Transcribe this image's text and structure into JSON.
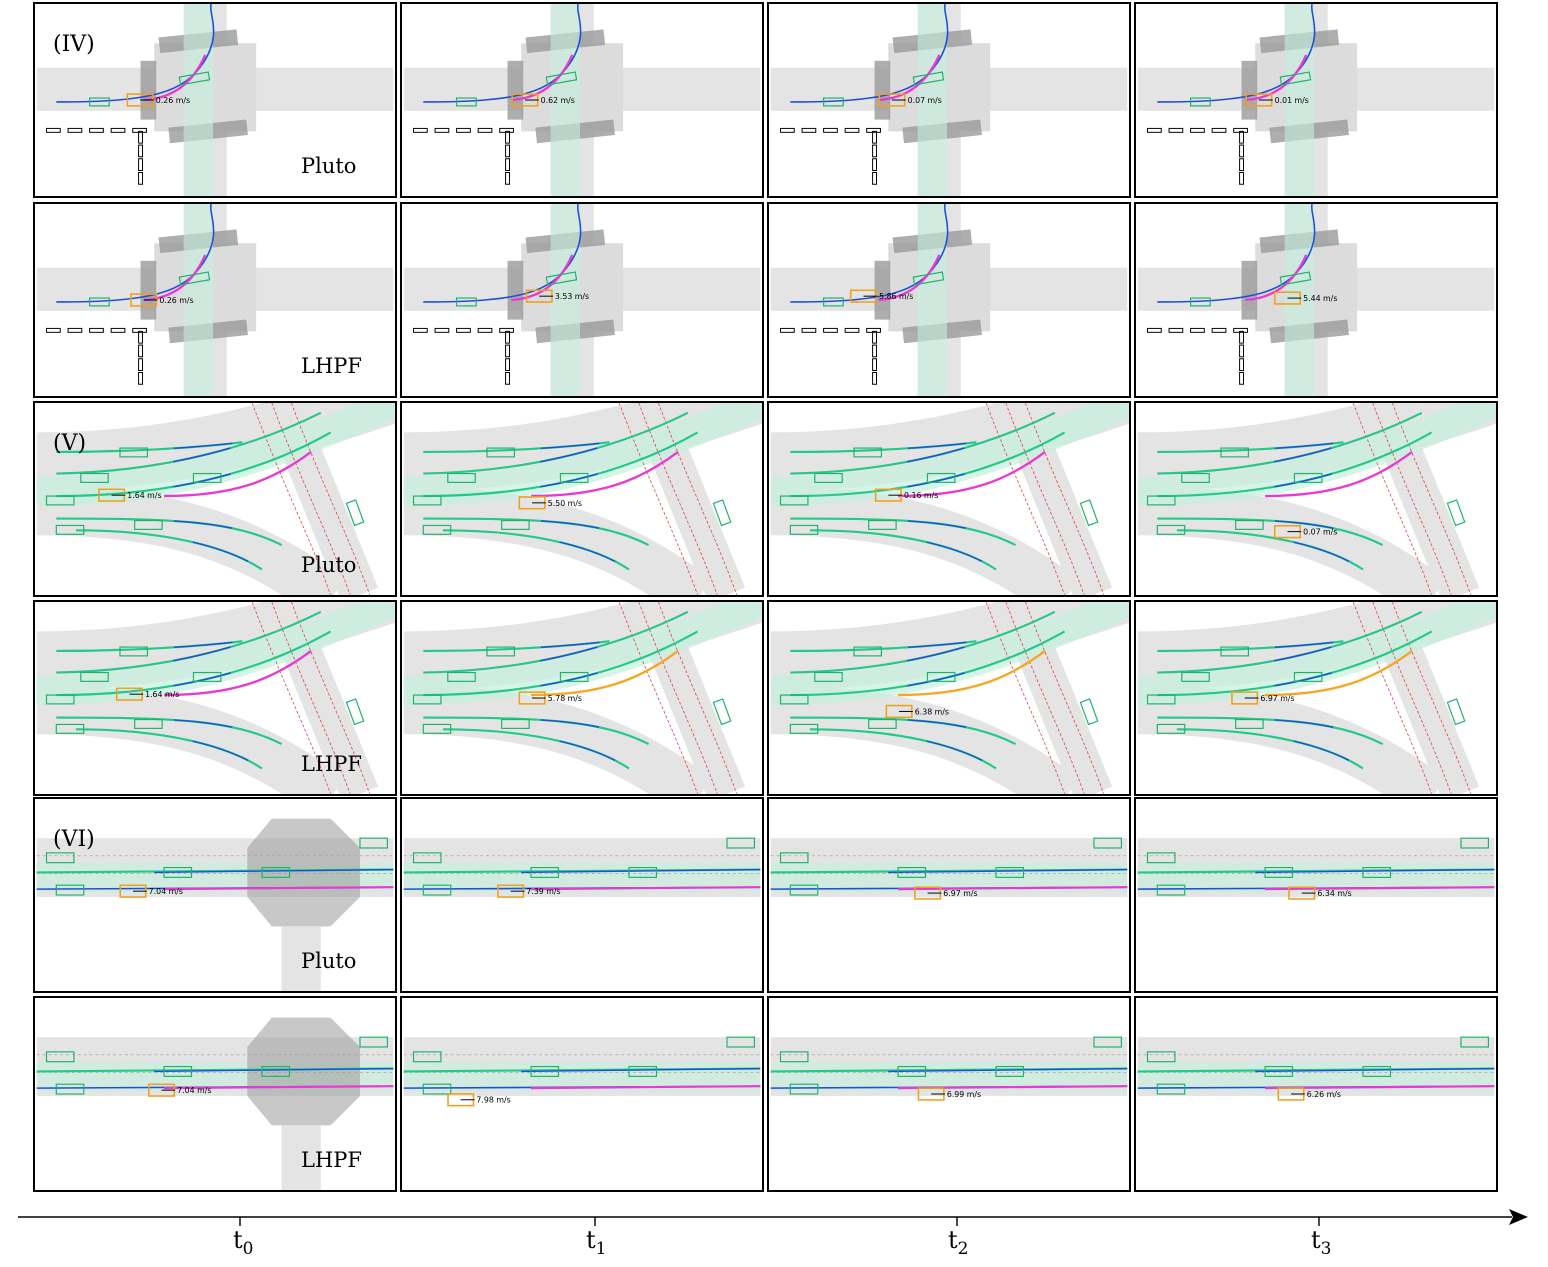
{
  "rows": [
    {
      "scenario": "(IV)",
      "method": "Pluto",
      "speeds": [
        "0.26 m/s",
        "0.62 m/s",
        "0.07 m/s",
        "0.01 m/s"
      ]
    },
    {
      "scenario": "",
      "method": "LHPF",
      "speeds": [
        "0.26 m/s",
        "3.53 m/s",
        "5.86 m/s",
        "5.44 m/s"
      ]
    },
    {
      "scenario": "(V)",
      "method": "Pluto",
      "speeds": [
        "1.64 m/s",
        "5.50 m/s",
        "0.16 m/s",
        "0.07 m/s"
      ]
    },
    {
      "scenario": "",
      "method": "LHPF",
      "speeds": [
        "1.64 m/s",
        "5.78 m/s",
        "6.38 m/s",
        "6.97 m/s"
      ]
    },
    {
      "scenario": "(VI)",
      "method": "Pluto",
      "speeds": [
        "7.04 m/s",
        "7.39 m/s",
        "6.97 m/s",
        "6.34 m/s"
      ]
    },
    {
      "scenario": "",
      "method": "LHPF",
      "speeds": [
        "7.04 m/s",
        "7.98 m/s",
        "6.99 m/s",
        "6.26 m/s"
      ]
    }
  ],
  "time_axis": {
    "ticks": [
      {
        "base": "t",
        "sub": "0"
      },
      {
        "base": "t",
        "sub": "1"
      },
      {
        "base": "t",
        "sub": "2"
      },
      {
        "base": "t",
        "sub": "3"
      }
    ]
  },
  "colors": {
    "road": "#e4e4e4",
    "crosswalk": "#9a9a9a",
    "agent_box": "#1db36b",
    "ego_box": "#f0a020",
    "traj_blue": "#1f4fd8",
    "traj_green": "#22c98a",
    "plan_magenta": "#e83ad0",
    "plan_orange": "#f5a623",
    "centerline_red": "#e04040",
    "drivable_teal": "#c6f0e0"
  }
}
